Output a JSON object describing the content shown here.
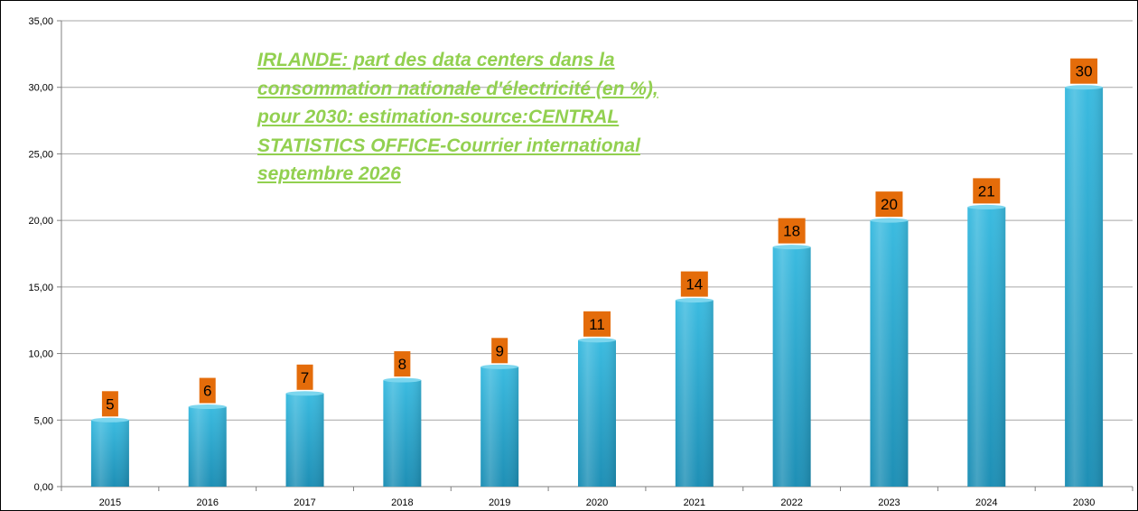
{
  "chart_data": {
    "type": "bar",
    "title": "IRLANDE: part des data centers dans la\nconsommation nationale d'électricité (en %),\npour 2030: estimation-source:CENTRAL\nSTATISTICS OFFICE-Courrier international\nseptembre 2026",
    "categories": [
      "2015",
      "2016",
      "2017",
      "2018",
      "2019",
      "2020",
      "2021",
      "2022",
      "2023",
      "2024",
      "2030"
    ],
    "values": [
      5,
      6,
      7,
      8,
      9,
      11,
      14,
      18,
      20,
      21,
      30
    ],
    "data_labels": [
      "5",
      "6",
      "7",
      "8",
      "9",
      "11",
      "14",
      "18",
      "20",
      "21",
      "30"
    ],
    "y_ticks": [
      "0,00",
      "5,00",
      "10,00",
      "15,00",
      "20,00",
      "25,00",
      "30,00",
      "35,00"
    ],
    "ylim": [
      0,
      35
    ],
    "xlabel": "",
    "ylabel": "",
    "grid": true,
    "legend": "none",
    "colors": {
      "bar": "#29B0D8",
      "bar_dark": "#1A8AAE",
      "bar_light": "#7CD6EE",
      "data_label_bg": "#E46C0A",
      "title": "#92D050",
      "grid": "#A6A6A6"
    }
  }
}
